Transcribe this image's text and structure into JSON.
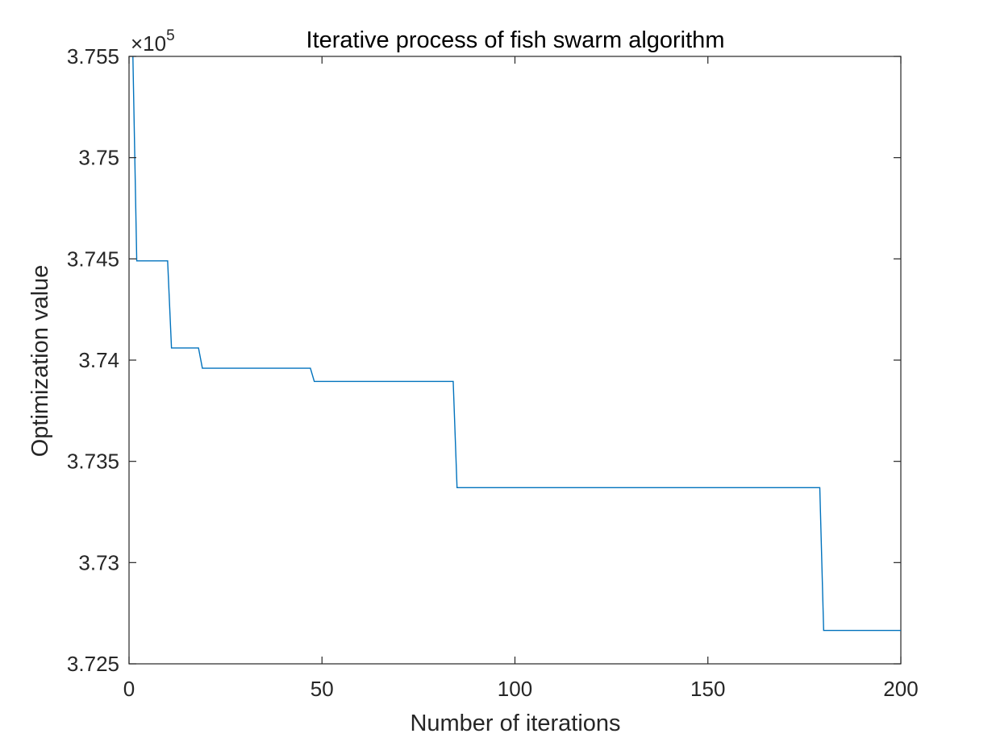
{
  "chart_data": {
    "type": "line",
    "title": "Iterative process of fish swarm algorithm",
    "xlabel": "Number of iterations",
    "ylabel": "Optimization value",
    "xlim": [
      0,
      200
    ],
    "ylim": [
      372500,
      375500
    ],
    "y_exponent": {
      "prefix": "×10",
      "power": "5"
    },
    "x_ticks": [
      0,
      50,
      100,
      150,
      200
    ],
    "x_tick_labels": [
      "0",
      "50",
      "100",
      "150",
      "200"
    ],
    "y_ticks": [
      372500,
      373000,
      373500,
      374000,
      374500,
      375000,
      375500
    ],
    "y_tick_labels": [
      "3.725",
      "3.73",
      "3.735",
      "3.74",
      "3.745",
      "3.75",
      "3.755"
    ],
    "grid": false,
    "line_color": "#0072BD",
    "series": [
      {
        "x": [
          1,
          2,
          10,
          11,
          18,
          19,
          47,
          48,
          84,
          85,
          179,
          180,
          200
        ],
        "y": [
          375500,
          374490,
          374490,
          374060,
          374060,
          373960,
          373960,
          373895,
          373895,
          373370,
          373370,
          372665,
          372665
        ]
      }
    ]
  }
}
